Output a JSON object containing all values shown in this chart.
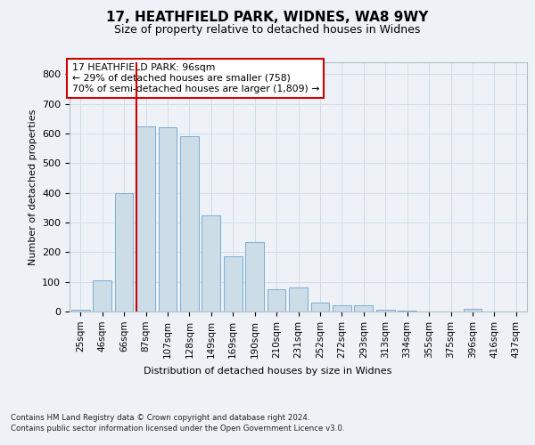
{
  "title1": "17, HEATHFIELD PARK, WIDNES, WA8 9WY",
  "title2": "Size of property relative to detached houses in Widnes",
  "xlabel": "Distribution of detached houses by size in Widnes",
  "ylabel": "Number of detached properties",
  "categories": [
    "25sqm",
    "46sqm",
    "66sqm",
    "87sqm",
    "107sqm",
    "128sqm",
    "149sqm",
    "169sqm",
    "190sqm",
    "210sqm",
    "231sqm",
    "252sqm",
    "272sqm",
    "293sqm",
    "313sqm",
    "334sqm",
    "355sqm",
    "375sqm",
    "396sqm",
    "416sqm",
    "437sqm"
  ],
  "values": [
    5,
    105,
    400,
    625,
    620,
    590,
    325,
    185,
    235,
    75,
    80,
    30,
    20,
    20,
    5,
    3,
    0,
    0,
    10,
    0,
    0
  ],
  "bar_color": "#ccdde8",
  "bar_edge_color": "#7aadd4",
  "grid_color": "#d0dce8",
  "vline_color": "#cc0000",
  "annotation_text": "17 HEATHFIELD PARK: 96sqm\n← 29% of detached houses are smaller (758)\n70% of semi-detached houses are larger (1,809) →",
  "annotation_box_color": "#ffffff",
  "annotation_box_edge": "#cc0000",
  "footer1": "Contains HM Land Registry data © Crown copyright and database right 2024.",
  "footer2": "Contains public sector information licensed under the Open Government Licence v3.0.",
  "ylim": [
    0,
    840
  ],
  "yticks": [
    0,
    100,
    200,
    300,
    400,
    500,
    600,
    700,
    800
  ],
  "background_color": "#eef2f7",
  "plot_bg_color": "#eef2f7",
  "title1_fontsize": 11,
  "title2_fontsize": 9,
  "ylabel_fontsize": 8,
  "xlabel_fontsize": 8,
  "tick_fontsize": 8,
  "xtick_fontsize": 7.5
}
